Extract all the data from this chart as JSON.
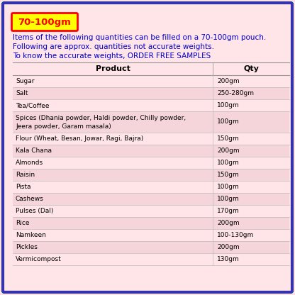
{
  "title_badge": "70-100gm",
  "badge_bg": "#FFFF00",
  "badge_border": "#FF0000",
  "badge_text_color": "#FF0000",
  "intro_lines": [
    "Items of the following quantities can be filled on a 70-100gm pouch.",
    "Following are approx. quantities not accurate weights.",
    "To know the accurate weights, ORDER FREE SAMPLES"
  ],
  "intro_color": "#0000CC",
  "col_header_product": "Product",
  "col_header_qty": "Qty",
  "header_text_color": "#000000",
  "bg_color": "#FFE4E8",
  "outer_border_color": "#3333AA",
  "rows": [
    {
      "product": "Sugar",
      "qty": "200gm"
    },
    {
      "product": "Salt",
      "qty": "250-280gm"
    },
    {
      "product": "Tea/Coffee",
      "qty": "100gm"
    },
    {
      "product": "Spices (Dhania powder, Haldi powder, Chilly powder,\nJeera powder, Garam masala)",
      "qty": "100gm"
    },
    {
      "product": "Flour (Wheat, Besan, Jowar, Ragi, Bajra)",
      "qty": "150gm"
    },
    {
      "product": "Kala Chana",
      "qty": "200gm"
    },
    {
      "product": "Almonds",
      "qty": "100gm"
    },
    {
      "product": "Raisin",
      "qty": "150gm"
    },
    {
      "product": "Pista",
      "qty": "100gm"
    },
    {
      "product": "Cashews",
      "qty": "100gm"
    },
    {
      "product": "Pulses (Dal)",
      "qty": "170gm"
    },
    {
      "product": "Rice",
      "qty": "200gm"
    },
    {
      "product": "Namkeen",
      "qty": "100-130gm"
    },
    {
      "product": "Pickles",
      "qty": "200gm"
    },
    {
      "product": "Vermicompost",
      "qty": "130gm"
    }
  ],
  "row_colors": [
    "#FFE4E8",
    "#F5D5DA"
  ],
  "text_color_row": "#000000",
  "figsize": [
    4.16,
    4.16
  ],
  "dpi": 100
}
